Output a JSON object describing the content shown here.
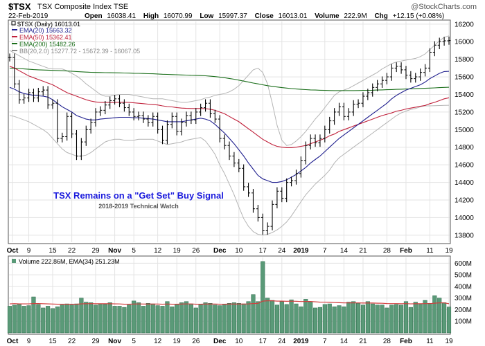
{
  "header": {
    "symbol": "$TSX",
    "name": "TSX Composite Index TSE",
    "date": "22-Feb-2019",
    "open_label": "Open",
    "open": "16038.41",
    "high_label": "High",
    "high": "16070.99",
    "low_label": "Low",
    "low": "15997.37",
    "close_label": "Close",
    "close": "16013.01",
    "volume_label": "Volume",
    "volume": "222.9M",
    "chg_label": "Chg",
    "chg": "+12.15 (+0.08%)",
    "watermark": "@StockCharts.com"
  },
  "legend": [
    {
      "text": "$TSX (Daily) 16013.01",
      "color": "#000000"
    },
    {
      "text": "EMA(20) 15663.32",
      "color": "#1f1f8f"
    },
    {
      "text": "EMA(50) 15362.41",
      "color": "#c0203a"
    },
    {
      "text": "EMA(200) 15482.26",
      "color": "#1a6e1a"
    },
    {
      "text": "BB(20,2.0) 15277.72 - 15672.39 - 16067.05",
      "color": "#8a8a8a"
    }
  ],
  "annotation": {
    "title": "TSX Remains on a \"Get Set\" Buy Signal",
    "subtitle": "2018-2019 Technical Watch",
    "title_color": "#1a1adc"
  },
  "volume_legend": "Volume 222.86M, EMA(34) 251.23M",
  "colors": {
    "ema20": "#1f1f8f",
    "ema50": "#c0203a",
    "ema200": "#1a6e1a",
    "bb": "#b4b4b4",
    "bb_mid": "#9a9a9a",
    "volume_bar": "#5a9a78",
    "volume_ema": "#d23c3c",
    "grid": "#e3e3e3"
  },
  "chart_data": {
    "type": "line",
    "price": {
      "ylim": [
        13720,
        16230
      ],
      "y_ticks": [
        13800,
        14000,
        14200,
        14400,
        14600,
        14800,
        15000,
        15200,
        15400,
        15600,
        15800,
        16000,
        16200
      ],
      "ohlc_closes": [
        15820,
        15520,
        15340,
        15360,
        15420,
        15360,
        15430,
        15450,
        15280,
        15300,
        14900,
        14920,
        15150,
        14950,
        14700,
        14860,
        15000,
        15080,
        15200,
        15220,
        15280,
        15330,
        15350,
        15300,
        15250,
        15200,
        15150,
        15160,
        15120,
        15080,
        15150,
        15000,
        14880,
        15060,
        15150,
        14980,
        15080,
        15160,
        15110,
        15200,
        15250,
        15300,
        15180,
        15120,
        14900,
        14820,
        14700,
        14620,
        14560,
        14350,
        14280,
        14100,
        14000,
        13850,
        13900,
        14150,
        14300,
        14220,
        14400,
        14420,
        14500,
        14650,
        14820,
        14900,
        14850,
        14900,
        15000,
        15100,
        15200,
        15260,
        15150,
        15200,
        15290,
        15300,
        15380,
        15420,
        15480,
        15520,
        15560,
        15600,
        15700,
        15720,
        15680,
        15620,
        15580,
        15600,
        15650,
        15700,
        15880,
        15960,
        16000,
        16010,
        16013
      ],
      "ema20": [
        15480,
        15460,
        15430,
        15410,
        15400,
        15390,
        15385,
        15380,
        15370,
        15340,
        15300,
        15260,
        15230,
        15200,
        15160,
        15140,
        15120,
        15110,
        15110,
        15120,
        15125,
        15130,
        15135,
        15140,
        15140,
        15140,
        15135,
        15135,
        15130,
        15125,
        15120,
        15110,
        15100,
        15090,
        15090,
        15090,
        15090,
        15100,
        15110,
        15120,
        15130,
        15120,
        15100,
        15060,
        15010,
        14960,
        14900,
        14840,
        14770,
        14700,
        14620,
        14550,
        14480,
        14440,
        14420,
        14400,
        14400,
        14410,
        14430,
        14460,
        14490,
        14530,
        14570,
        14620,
        14660,
        14700,
        14750,
        14800,
        14850,
        14900,
        14940,
        14980,
        15020,
        15060,
        15100,
        15140,
        15180,
        15220,
        15260,
        15300,
        15350,
        15390,
        15420,
        15450,
        15470,
        15490,
        15510,
        15540,
        15580,
        15610,
        15640,
        15660,
        15663
      ],
      "ema50": [
        15720,
        15700,
        15670,
        15640,
        15610,
        15590,
        15570,
        15550,
        15530,
        15510,
        15480,
        15450,
        15420,
        15400,
        15380,
        15360,
        15340,
        15325,
        15315,
        15310,
        15310,
        15310,
        15310,
        15312,
        15312,
        15310,
        15305,
        15300,
        15295,
        15290,
        15285,
        15280,
        15270,
        15262,
        15258,
        15250,
        15245,
        15242,
        15240,
        15240,
        15240,
        15238,
        15232,
        15220,
        15200,
        15180,
        15150,
        15120,
        15090,
        15050,
        15010,
        14970,
        14930,
        14890,
        14860,
        14830,
        14810,
        14800,
        14795,
        14795,
        14800,
        14810,
        14820,
        14840,
        14860,
        14880,
        14900,
        14930,
        14950,
        14980,
        15000,
        15020,
        15040,
        15060,
        15080,
        15100,
        15120,
        15140,
        15160,
        15175,
        15190,
        15210,
        15220,
        15235,
        15245,
        15255,
        15265,
        15275,
        15295,
        15310,
        15330,
        15350,
        15362
      ],
      "ema200": [
        15700,
        15698,
        15695,
        15690,
        15686,
        15682,
        15680,
        15678,
        15676,
        15674,
        15672,
        15670,
        15667,
        15664,
        15660,
        15657,
        15654,
        15652,
        15650,
        15649,
        15648,
        15647,
        15646,
        15645,
        15644,
        15643,
        15641,
        15640,
        15638,
        15636,
        15635,
        15633,
        15630,
        15628,
        15626,
        15624,
        15622,
        15620,
        15618,
        15617,
        15615,
        15612,
        15608,
        15603,
        15597,
        15590,
        15582,
        15573,
        15563,
        15552,
        15541,
        15530,
        15520,
        15510,
        15500,
        15492,
        15485,
        15478,
        15472,
        15467,
        15462,
        15458,
        15455,
        15452,
        15450,
        15448,
        15446,
        15445,
        15444,
        15444,
        15444,
        15444,
        15444,
        15445,
        15446,
        15447,
        15448,
        15450,
        15452,
        15454,
        15456,
        15458,
        15460,
        15462,
        15464,
        15466,
        15468,
        15470,
        15472,
        15475,
        15478,
        15480,
        15482
      ],
      "bb_upper": [
        15900,
        15870,
        15840,
        15810,
        15780,
        15760,
        15740,
        15720,
        15700,
        15690,
        15690,
        15690,
        15670,
        15640,
        15610,
        15570,
        15520,
        15480,
        15440,
        15400,
        15380,
        15380,
        15390,
        15400,
        15400,
        15400,
        15390,
        15380,
        15370,
        15360,
        15350,
        15350,
        15350,
        15340,
        15330,
        15320,
        15310,
        15310,
        15320,
        15330,
        15340,
        15360,
        15370,
        15390,
        15400,
        15410,
        15430,
        15460,
        15500,
        15560,
        15620,
        15680,
        15700,
        15650,
        15520,
        15300,
        15050,
        14880,
        14820,
        14830,
        14870,
        14920,
        14980,
        15050,
        15120,
        15180,
        15250,
        15320,
        15390,
        15430,
        15450,
        15470,
        15500,
        15530,
        15560,
        15590,
        15620,
        15650,
        15690,
        15720,
        15750,
        15770,
        15780,
        15790,
        15800,
        15810,
        15830,
        15860,
        15910,
        15960,
        16010,
        16050,
        16067
      ],
      "bb_lower": [
        15160,
        15150,
        15130,
        15110,
        15090,
        15060,
        15030,
        15000,
        14960,
        14900,
        14840,
        14780,
        14740,
        14720,
        14700,
        14700,
        14710,
        14740,
        14780,
        14820,
        14860,
        14880,
        14890,
        14890,
        14880,
        14880,
        14880,
        14890,
        14890,
        14890,
        14890,
        14870,
        14850,
        14830,
        14840,
        14850,
        14860,
        14880,
        14890,
        14900,
        14910,
        14870,
        14800,
        14720,
        14600,
        14500,
        14380,
        14260,
        14120,
        13990,
        13900,
        13840,
        13810,
        13800,
        13810,
        13830,
        13860,
        13900,
        13950,
        14020,
        14100,
        14180,
        14260,
        14320,
        14380,
        14430,
        14480,
        14540,
        14620,
        14680,
        14720,
        14760,
        14800,
        14840,
        14880,
        14920,
        14960,
        15000,
        15040,
        15080,
        15120,
        15160,
        15190,
        15210,
        15230,
        15240,
        15260,
        15270,
        15270,
        15272,
        15274,
        15276,
        15277
      ]
    },
    "volume": {
      "ylim": [
        0,
        650
      ],
      "unit": "M",
      "y_ticks": [
        "100M",
        "200M",
        "300M",
        "400M",
        "500M",
        "600M"
      ],
      "values": [
        230,
        240,
        250,
        230,
        235,
        310,
        245,
        215,
        230,
        210,
        225,
        240,
        250,
        240,
        250,
        300,
        265,
        260,
        240,
        250,
        245,
        260,
        230,
        230,
        220,
        240,
        275,
        260,
        230,
        255,
        250,
        235,
        230,
        270,
        225,
        245,
        260,
        270,
        250,
        215,
        245,
        260,
        255,
        240,
        235,
        245,
        255,
        260,
        255,
        250,
        270,
        330,
        270,
        615,
        300,
        280,
        240,
        270,
        245,
        285,
        250,
        225,
        290,
        270,
        215,
        220,
        245,
        250,
        225,
        235,
        225,
        265,
        270,
        255,
        240,
        270,
        250,
        240,
        240,
        215,
        240,
        245,
        240,
        270,
        220,
        265,
        250,
        280,
        255,
        320,
        300,
        260,
        223
      ],
      "ema34": [
        250,
        252,
        250,
        250,
        250,
        253,
        253,
        251,
        250,
        248,
        247,
        247,
        247,
        247,
        247,
        250,
        251,
        252,
        251,
        251,
        251,
        251,
        250,
        249,
        247,
        247,
        248,
        249,
        248,
        248,
        248,
        248,
        247,
        248,
        247,
        247,
        248,
        249,
        249,
        247,
        247,
        248,
        248,
        248,
        247,
        247,
        248,
        248,
        248,
        248,
        249,
        253,
        254,
        274,
        276,
        276,
        274,
        274,
        272,
        273,
        272,
        270,
        271,
        271,
        268,
        265,
        264,
        263,
        261,
        260,
        258,
        258,
        258,
        258,
        257,
        257,
        257,
        256,
        255,
        253,
        252,
        252,
        251,
        252,
        250,
        251,
        251,
        252,
        252,
        256,
        258,
        258,
        251
      ]
    },
    "x_tick_labels": [
      {
        "label": "Oct",
        "bold": true
      },
      {
        "label": "9",
        "bold": false
      },
      {
        "label": "15",
        "bold": false
      },
      {
        "label": "22",
        "bold": false
      },
      {
        "label": "29",
        "bold": false
      },
      {
        "label": "Nov",
        "bold": true
      },
      {
        "label": "5",
        "bold": false
      },
      {
        "label": "12",
        "bold": false
      },
      {
        "label": "19",
        "bold": false
      },
      {
        "label": "26",
        "bold": false
      },
      {
        "label": "Dec",
        "bold": true
      },
      {
        "label": "10",
        "bold": false
      },
      {
        "label": "17",
        "bold": false
      },
      {
        "label": "24",
        "bold": false
      },
      {
        "label": "2019",
        "bold": true
      },
      {
        "label": "7",
        "bold": false
      },
      {
        "label": "14",
        "bold": false
      },
      {
        "label": "21",
        "bold": false
      },
      {
        "label": "28",
        "bold": false
      },
      {
        "label": "Feb",
        "bold": true
      },
      {
        "label": "11",
        "bold": false
      },
      {
        "label": "19",
        "bold": false
      }
    ]
  }
}
